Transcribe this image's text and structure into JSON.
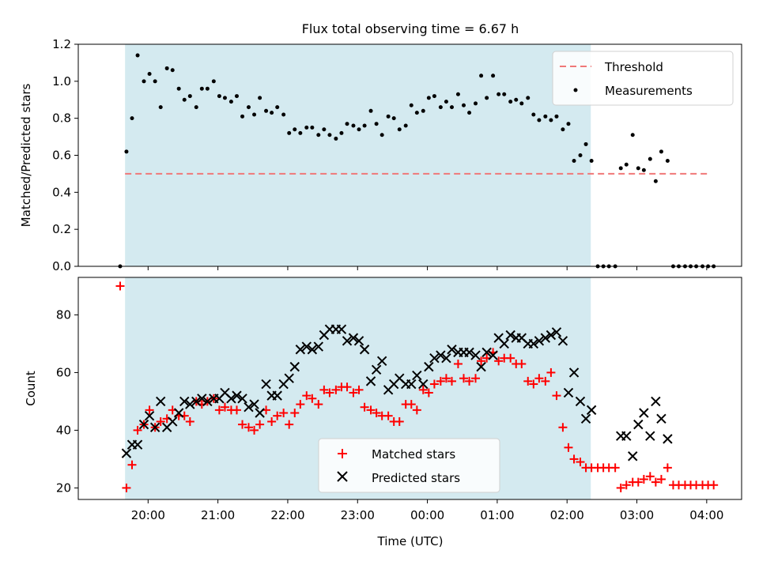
{
  "figure_title": "Flux total observing time = 6.67 h",
  "chart_data": [
    {
      "type": "scatter",
      "x_unit": "hours (UTC); values >= 24 are after midnight",
      "xlim": [
        19.0,
        28.5
      ],
      "ylim": [
        0,
        1.2
      ],
      "yticks": [
        0,
        0.2,
        0.4,
        0.6,
        0.8,
        1.0,
        1.2
      ],
      "ytick_labels": [
        "0.0",
        "0.2",
        "0.4",
        "0.6",
        "0.8",
        "1.0",
        "1.2"
      ],
      "ylabel": "Matched/Predicted stars",
      "xlabel": "",
      "grid": false,
      "legend_position": "top-right",
      "shaded_span": {
        "x_start": 19.67,
        "x_end": 26.34,
        "color": "#d4eaf0"
      },
      "threshold": {
        "name": "Threshold",
        "value": 0.5,
        "x_start": 19.67,
        "x_end": 28.05,
        "color": "#f07878"
      },
      "series": [
        {
          "name": "Measurements",
          "color": "#000000",
          "x": [
            19.6,
            19.69,
            19.77,
            19.85,
            19.94,
            20.02,
            20.1,
            20.18,
            20.27,
            20.35,
            20.44,
            20.52,
            20.6,
            20.69,
            20.77,
            20.85,
            20.94,
            21.02,
            21.1,
            21.19,
            21.27,
            21.35,
            21.44,
            21.52,
            21.6,
            21.69,
            21.77,
            21.85,
            21.94,
            22.02,
            22.1,
            22.18,
            22.27,
            22.35,
            22.44,
            22.52,
            22.6,
            22.69,
            22.77,
            22.85,
            22.94,
            23.02,
            23.1,
            23.19,
            23.27,
            23.35,
            23.44,
            23.52,
            23.6,
            23.69,
            23.77,
            23.85,
            23.94,
            24.02,
            24.1,
            24.19,
            24.27,
            24.35,
            24.44,
            24.52,
            24.6,
            24.69,
            24.77,
            24.85,
            24.94,
            25.02,
            25.1,
            25.19,
            25.27,
            25.35,
            25.44,
            25.52,
            25.6,
            25.69,
            25.77,
            25.85,
            25.94,
            26.02,
            26.1,
            26.19,
            26.27,
            26.35,
            26.44,
            26.52,
            26.6,
            26.69,
            26.77,
            26.85,
            26.94,
            27.02,
            27.1,
            27.19,
            27.27,
            27.35,
            27.44,
            27.52,
            27.6,
            27.69,
            27.77,
            27.85,
            27.94,
            28.02,
            28.1
          ],
          "y": [
            0.0,
            0.62,
            0.8,
            1.14,
            1.0,
            1.04,
            1.0,
            0.86,
            1.07,
            1.06,
            0.96,
            0.9,
            0.92,
            0.86,
            0.96,
            0.96,
            1.0,
            0.92,
            0.91,
            0.89,
            0.92,
            0.81,
            0.86,
            0.82,
            0.91,
            0.84,
            0.83,
            0.86,
            0.82,
            0.72,
            0.74,
            0.72,
            0.75,
            0.75,
            0.71,
            0.74,
            0.71,
            0.69,
            0.72,
            0.77,
            0.76,
            0.74,
            0.76,
            0.84,
            0.77,
            0.71,
            0.81,
            0.8,
            0.74,
            0.76,
            0.87,
            0.83,
            0.84,
            0.91,
            0.92,
            0.86,
            0.89,
            0.86,
            0.93,
            0.87,
            0.83,
            0.88,
            1.03,
            0.91,
            1.03,
            0.93,
            0.93,
            0.89,
            0.9,
            0.88,
            0.91,
            0.82,
            0.79,
            0.81,
            0.79,
            0.81,
            0.74,
            0.77,
            0.57,
            0.6,
            0.66,
            0.57,
            0.0,
            0.0,
            0.0,
            0.0,
            0.53,
            0.55,
            0.71,
            0.53,
            0.52,
            0.58,
            0.46,
            0.62,
            0.57,
            0.0,
            0.0,
            0.0,
            0.0,
            0.0,
            0.0,
            0.0,
            0.0
          ]
        }
      ]
    },
    {
      "type": "scatter",
      "x_unit": "hours (UTC); values >= 24 are after midnight",
      "xlim": [
        19.0,
        28.5
      ],
      "ylim": [
        16,
        93
      ],
      "yticks": [
        20,
        40,
        60,
        80
      ],
      "ytick_labels": [
        "20",
        "40",
        "60",
        "80"
      ],
      "ylabel": "Count",
      "xlabel": "Time (UTC)",
      "xticks": [
        20,
        21,
        22,
        23,
        24,
        25,
        26,
        27,
        28
      ],
      "xtick_labels": [
        "20:00",
        "21:00",
        "22:00",
        "23:00",
        "00:00",
        "01:00",
        "02:00",
        "03:00",
        "04:00"
      ],
      "grid": false,
      "legend_position": "bottom-center",
      "shaded_span": {
        "x_start": 19.67,
        "x_end": 26.34,
        "color": "#d4eaf0"
      },
      "series": [
        {
          "name": "Matched stars",
          "marker": "plus",
          "color": "#ff0000",
          "x": [
            19.6,
            19.69,
            19.77,
            19.85,
            19.94,
            20.02,
            20.1,
            20.18,
            20.27,
            20.35,
            20.44,
            20.52,
            20.6,
            20.69,
            20.77,
            20.85,
            20.94,
            21.02,
            21.1,
            21.19,
            21.27,
            21.35,
            21.44,
            21.52,
            21.6,
            21.69,
            21.77,
            21.85,
            21.94,
            22.02,
            22.1,
            22.18,
            22.27,
            22.35,
            22.44,
            22.52,
            22.6,
            22.69,
            22.77,
            22.85,
            22.94,
            23.02,
            23.1,
            23.19,
            23.27,
            23.35,
            23.44,
            23.52,
            23.6,
            23.69,
            23.77,
            23.85,
            23.94,
            24.02,
            24.1,
            24.19,
            24.27,
            24.35,
            24.44,
            24.52,
            24.6,
            24.69,
            24.77,
            24.85,
            24.94,
            25.02,
            25.1,
            25.19,
            25.27,
            25.35,
            25.44,
            25.52,
            25.6,
            25.69,
            25.77,
            25.85,
            25.94,
            26.02,
            26.1,
            26.19,
            26.27,
            26.35,
            26.44,
            26.52,
            26.6,
            26.69,
            26.77,
            26.85,
            26.94,
            27.02,
            27.1,
            27.19,
            27.27,
            27.35,
            27.44,
            27.52,
            27.6,
            27.69,
            27.77,
            27.85,
            27.94,
            28.02,
            28.1
          ],
          "y": [
            90,
            20,
            28,
            40,
            42,
            47,
            41,
            43,
            44,
            47,
            45,
            45,
            43,
            50,
            49,
            50,
            51,
            47,
            48,
            47,
            47,
            42,
            41,
            40,
            42,
            47,
            43,
            45,
            46,
            42,
            46,
            49,
            52,
            51,
            49,
            54,
            53,
            54,
            55,
            55,
            53,
            54,
            48,
            47,
            46,
            45,
            45,
            43,
            43,
            49,
            49,
            47,
            54,
            53,
            56,
            57,
            58,
            57,
            63,
            58,
            57,
            58,
            64,
            65,
            67,
            64,
            65,
            65,
            63,
            63,
            57,
            56,
            58,
            57,
            60,
            52,
            41,
            34,
            30,
            29,
            27,
            27,
            27,
            27,
            27,
            27,
            20,
            21,
            22,
            22,
            23,
            24,
            22,
            23,
            27,
            21,
            21,
            21,
            21,
            21,
            21,
            21,
            21
          ]
        },
        {
          "name": "Predicted stars",
          "marker": "x",
          "color": "#000000",
          "x": [
            19.69,
            19.77,
            19.85,
            19.94,
            20.02,
            20.1,
            20.18,
            20.27,
            20.35,
            20.44,
            20.52,
            20.6,
            20.69,
            20.77,
            20.85,
            20.94,
            21.02,
            21.1,
            21.19,
            21.27,
            21.35,
            21.44,
            21.52,
            21.6,
            21.69,
            21.77,
            21.85,
            21.94,
            22.02,
            22.1,
            22.18,
            22.27,
            22.35,
            22.44,
            22.52,
            22.6,
            22.69,
            22.77,
            22.85,
            22.94,
            23.02,
            23.1,
            23.19,
            23.27,
            23.35,
            23.44,
            23.52,
            23.6,
            23.69,
            23.77,
            23.85,
            23.94,
            24.02,
            24.1,
            24.19,
            24.27,
            24.35,
            24.44,
            24.52,
            24.6,
            24.69,
            24.77,
            24.85,
            24.94,
            25.02,
            25.1,
            25.19,
            25.27,
            25.35,
            25.44,
            25.52,
            25.6,
            25.69,
            25.77,
            25.85,
            25.94,
            26.02,
            26.1,
            26.19,
            26.27,
            26.35,
            26.77,
            26.85,
            26.94,
            27.02,
            27.1,
            27.19,
            27.27,
            27.35,
            27.44
          ],
          "y": [
            32,
            35,
            35,
            42,
            45,
            41,
            50,
            41,
            43,
            46,
            50,
            49,
            50,
            51,
            50,
            51,
            51,
            53,
            51,
            52,
            51,
            48,
            49,
            46,
            56,
            52,
            52,
            56,
            58,
            62,
            68,
            69,
            68,
            69,
            73,
            75,
            75,
            75,
            71,
            72,
            71,
            68,
            57,
            61,
            64,
            54,
            56,
            58,
            56,
            56,
            59,
            56,
            62,
            65,
            66,
            65,
            68,
            67,
            67,
            67,
            66,
            62,
            67,
            66,
            72,
            70,
            73,
            72,
            72,
            70,
            70,
            71,
            72,
            73,
            74,
            71,
            53,
            60,
            50,
            44,
            47,
            38,
            38,
            31,
            42,
            46,
            38,
            50,
            44,
            37
          ]
        }
      ]
    }
  ]
}
